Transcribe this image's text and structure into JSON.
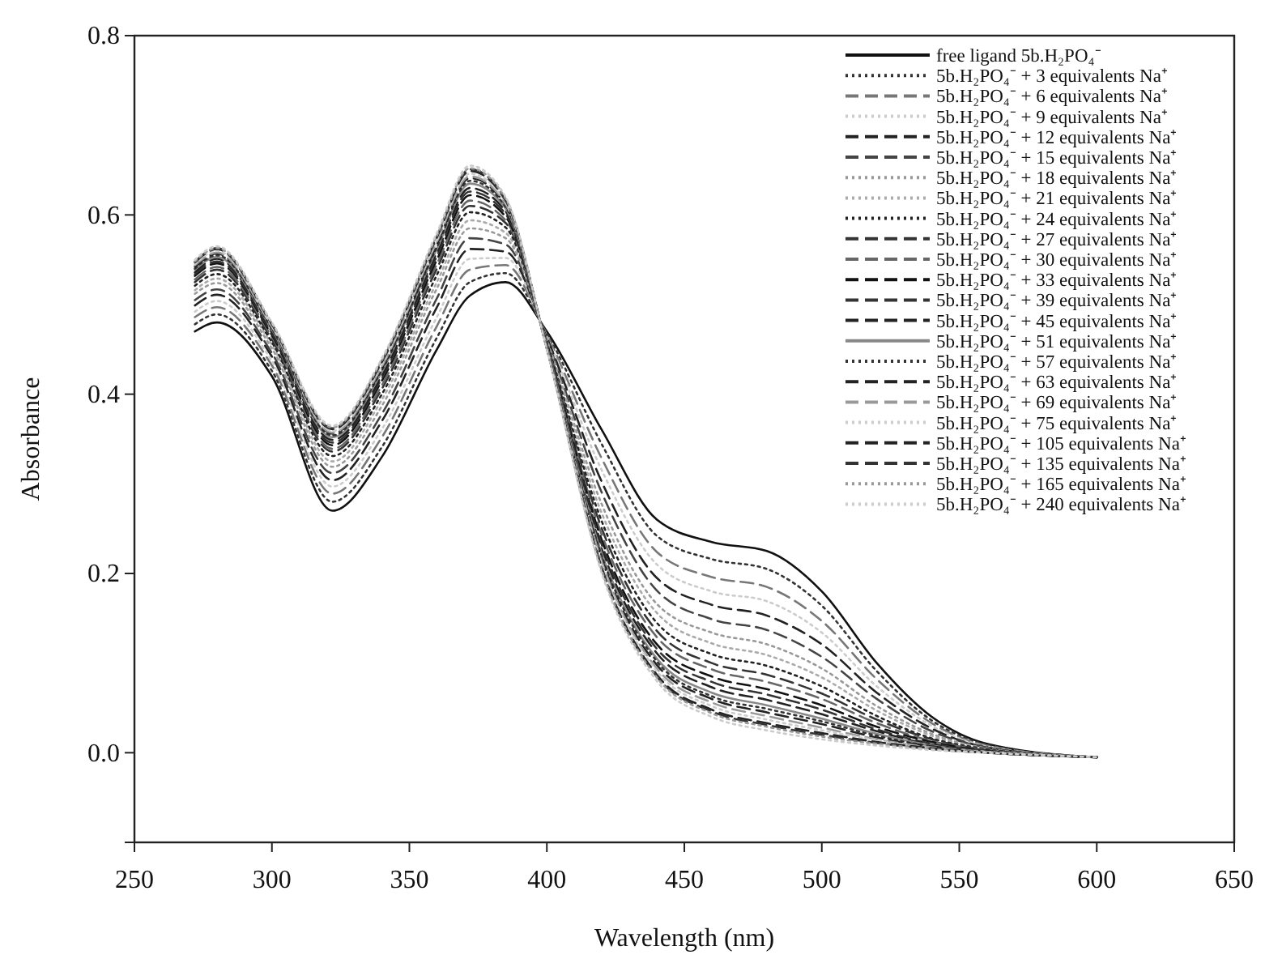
{
  "chart_data": {
    "type": "line",
    "xlabel": "Wavelength (nm)",
    "ylabel": "Absorbance",
    "x": [
      272,
      280,
      300,
      322,
      340,
      360,
      372,
      385,
      400,
      420,
      440,
      460,
      480,
      500,
      520,
      540,
      560,
      600
    ],
    "xlim": [
      250,
      650
    ],
    "xticks": [
      250,
      300,
      350,
      400,
      450,
      500,
      550,
      600,
      650
    ],
    "ylim": [
      -0.1,
      0.8
    ],
    "yticks": [
      {
        "value": 0,
        "label": "0.0"
      },
      {
        "value": 0.2,
        "label": "0.2"
      },
      {
        "value": 0.4,
        "label": "0.4"
      },
      {
        "value": 0.6,
        "label": "0.6"
      },
      {
        "value": 0.8,
        "label": "0.8"
      }
    ],
    "grid": false,
    "legend": "top right",
    "marker": "none",
    "series": [
      {
        "name": "free ligand 5b.H₂PO₄⁻",
        "color": "#111111",
        "line_style": "solid",
        "values": [
          0.47,
          0.48,
          0.42,
          0.27,
          0.33,
          0.45,
          0.51,
          0.525,
          0.47,
          0.36,
          0.26,
          0.235,
          0.225,
          0.18,
          0.1,
          0.04,
          0.01,
          -0.005
        ]
      },
      {
        "name": "5b.H₂PO₄⁻ + 3 equivalents Na⁺",
        "color": "#333333",
        "line_style": "dotted",
        "values": [
          0.478,
          0.489,
          0.426,
          0.28,
          0.341,
          0.463,
          0.525,
          0.535,
          0.468,
          0.344,
          0.242,
          0.216,
          0.205,
          0.164,
          0.091,
          0.036,
          0.009,
          -0.005
        ]
      },
      {
        "name": "5b.H₂PO₄⁻ + 6 equivalents Na⁺",
        "color": "#777777",
        "line_style": "dashed",
        "values": [
          0.486,
          0.497,
          0.432,
          0.289,
          0.352,
          0.476,
          0.539,
          0.544,
          0.466,
          0.328,
          0.224,
          0.196,
          0.185,
          0.147,
          0.082,
          0.033,
          0.008,
          -0.005
        ]
      },
      {
        "name": "5b.H₂PO₄⁻ + 9 equivalents Na⁺",
        "color": "#cccccc",
        "line_style": "dotted",
        "values": [
          0.492,
          0.504,
          0.437,
          0.297,
          0.361,
          0.486,
          0.551,
          0.552,
          0.464,
          0.315,
          0.21,
          0.18,
          0.169,
          0.134,
          0.074,
          0.03,
          0.007,
          -0.005
        ]
      },
      {
        "name": "5b.H₂PO₄⁻ + 12 equivalents Na⁺",
        "color": "#222222",
        "line_style": "dashed",
        "values": [
          0.499,
          0.511,
          0.442,
          0.304,
          0.37,
          0.497,
          0.562,
          0.559,
          0.463,
          0.302,
          0.195,
          0.165,
          0.153,
          0.121,
          0.067,
          0.027,
          0.006,
          -0.005
        ]
      },
      {
        "name": "5b.H₂PO₄⁻ + 15 equivalents Na⁺",
        "color": "#444444",
        "line_style": "dashed",
        "values": [
          0.505,
          0.517,
          0.446,
          0.312,
          0.378,
          0.507,
          0.574,
          0.567,
          0.461,
          0.29,
          0.181,
          0.149,
          0.137,
          0.107,
          0.06,
          0.024,
          0.006,
          -0.005
        ]
      },
      {
        "name": "5b.H₂PO₄⁻ + 18 equivalents Na⁺",
        "color": "#999999",
        "line_style": "dotted",
        "values": [
          0.512,
          0.524,
          0.451,
          0.319,
          0.387,
          0.518,
          0.585,
          0.574,
          0.46,
          0.277,
          0.166,
          0.134,
          0.121,
          0.094,
          0.052,
          0.021,
          0.005,
          -0.005
        ]
      },
      {
        "name": "5b.H₂PO₄⁻ + 21 equivalents Na⁺",
        "color": "#aaaaaa",
        "line_style": "dotted",
        "values": [
          0.516,
          0.529,
          0.455,
          0.325,
          0.394,
          0.525,
          0.594,
          0.58,
          0.458,
          0.267,
          0.156,
          0.122,
          0.109,
          0.084,
          0.047,
          0.019,
          0.004,
          -0.005
        ]
      },
      {
        "name": "5b.H₂PO₄⁻ + 24 equivalents Na⁺",
        "color": "#222222",
        "line_style": "dotted",
        "values": [
          0.521,
          0.534,
          0.458,
          0.331,
          0.4,
          0.533,
          0.603,
          0.586,
          0.457,
          0.258,
          0.145,
          0.11,
          0.097,
          0.074,
          0.041,
          0.016,
          0.004,
          -0.005
        ]
      },
      {
        "name": "5b.H₂PO₄⁻ + 27 equivalents Na⁺",
        "color": "#333333",
        "line_style": "dashed",
        "values": [
          0.525,
          0.539,
          0.461,
          0.336,
          0.406,
          0.54,
          0.61,
          0.591,
          0.456,
          0.25,
          0.136,
          0.1,
          0.087,
          0.066,
          0.037,
          0.015,
          0.003,
          -0.005
        ]
      },
      {
        "name": "5b.H₂PO₄⁻ + 30 equivalents Na⁺",
        "color": "#666666",
        "line_style": "dashed",
        "values": [
          0.528,
          0.542,
          0.464,
          0.339,
          0.41,
          0.545,
          0.616,
          0.594,
          0.455,
          0.243,
          0.129,
          0.093,
          0.079,
          0.06,
          0.033,
          0.013,
          0.003,
          -0.005
        ]
      },
      {
        "name": "5b.H₂PO₄⁻ + 33 equivalents Na⁺",
        "color": "#111111",
        "line_style": "dashed",
        "values": [
          0.532,
          0.546,
          0.466,
          0.343,
          0.415,
          0.55,
          0.622,
          0.598,
          0.455,
          0.237,
          0.121,
          0.085,
          0.071,
          0.053,
          0.029,
          0.012,
          0.002,
          -0.005
        ]
      },
      {
        "name": "5b.H₂PO₄⁻ + 39 equivalents Na⁺",
        "color": "#333333",
        "line_style": "dashed",
        "values": [
          0.534,
          0.548,
          0.468,
          0.346,
          0.418,
          0.554,
          0.626,
          0.601,
          0.454,
          0.232,
          0.116,
          0.079,
          0.065,
          0.048,
          0.026,
          0.01,
          0.002,
          -0.005
        ]
      },
      {
        "name": "5b.H₂PO₄⁻ + 45 equivalents Na⁺",
        "color": "#222222",
        "line_style": "dashed",
        "values": [
          0.536,
          0.551,
          0.47,
          0.349,
          0.421,
          0.558,
          0.63,
          0.604,
          0.453,
          0.227,
          0.111,
          0.073,
          0.059,
          0.043,
          0.024,
          0.009,
          0.002,
          -0.005
        ]
      },
      {
        "name": "5b.H₂PO₄⁻ + 51 equivalents Na⁺",
        "color": "#888888",
        "line_style": "solid",
        "values": [
          0.539,
          0.553,
          0.472,
          0.352,
          0.425,
          0.562,
          0.635,
          0.607,
          0.453,
          0.222,
          0.105,
          0.067,
          0.053,
          0.038,
          0.021,
          0.008,
          0.001,
          -0.005
        ]
      },
      {
        "name": "5b.H₂PO₄⁻ + 57 equivalents Na⁺",
        "color": "#333333",
        "line_style": "dotted",
        "values": [
          0.54,
          0.555,
          0.473,
          0.354,
          0.427,
          0.564,
          0.638,
          0.609,
          0.452,
          0.219,
          0.102,
          0.063,
          0.049,
          0.035,
          0.019,
          0.007,
          0.001,
          -0.005
        ]
      },
      {
        "name": "5b.H₂PO₄⁻ + 63 equivalents Na⁺",
        "color": "#222222",
        "line_style": "dashed",
        "values": [
          0.542,
          0.557,
          0.474,
          0.356,
          0.429,
          0.567,
          0.641,
          0.611,
          0.452,
          0.216,
          0.098,
          0.06,
          0.045,
          0.032,
          0.017,
          0.007,
          0.001,
          -0.005
        ]
      },
      {
        "name": "5b.H₂PO₄⁻ + 69 equivalents Na⁺",
        "color": "#999999",
        "line_style": "dashed",
        "values": [
          0.544,
          0.558,
          0.475,
          0.357,
          0.431,
          0.57,
          0.643,
          0.612,
          0.452,
          0.213,
          0.094,
          0.056,
          0.041,
          0.028,
          0.015,
          0.006,
          0.001,
          -0.005
        ]
      },
      {
        "name": "5b.H₂PO₄⁻ + 75 equivalents Na⁺",
        "color": "#cccccc",
        "line_style": "dotted",
        "values": [
          0.545,
          0.56,
          0.476,
          0.359,
          0.433,
          0.572,
          0.646,
          0.614,
          0.451,
          0.21,
          0.091,
          0.052,
          0.037,
          0.025,
          0.014,
          0.005,
          0.001,
          -0.005
        ]
      },
      {
        "name": "5b.H₂PO₄⁻ + 105 equivalents Na⁺",
        "color": "#222222",
        "line_style": "dashed",
        "values": [
          0.547,
          0.562,
          0.478,
          0.361,
          0.436,
          0.575,
          0.649,
          0.616,
          0.451,
          0.206,
          0.087,
          0.048,
          0.033,
          0.022,
          0.012,
          0.005,
          0,
          -0.005
        ]
      },
      {
        "name": "5b.H₂PO₄⁻ + 135 equivalents Na⁺",
        "color": "#333333",
        "line_style": "dashed",
        "values": [
          0.548,
          0.563,
          0.478,
          0.362,
          0.437,
          0.576,
          0.651,
          0.617,
          0.451,
          0.205,
          0.085,
          0.046,
          0.031,
          0.02,
          0.011,
          0.004,
          0,
          -0.005
        ]
      },
      {
        "name": "5b.H₂PO₄⁻ + 165 equivalents Na⁺",
        "color": "#999999",
        "line_style": "dotted",
        "values": [
          0.548,
          0.563,
          0.479,
          0.363,
          0.438,
          0.577,
          0.652,
          0.618,
          0.45,
          0.203,
          0.084,
          0.044,
          0.029,
          0.018,
          0.01,
          0.004,
          0,
          -0.005
        ]
      },
      {
        "name": "5b.H₂PO₄⁻ + 240 equivalents Na⁺",
        "color": "#cccccc",
        "line_style": "dotted",
        "values": [
          0.55,
          0.565,
          0.48,
          0.365,
          0.44,
          0.58,
          0.655,
          0.62,
          0.45,
          0.2,
          0.08,
          0.04,
          0.025,
          0.015,
          0.008,
          0.003,
          0,
          -0.005
        ]
      }
    ]
  }
}
